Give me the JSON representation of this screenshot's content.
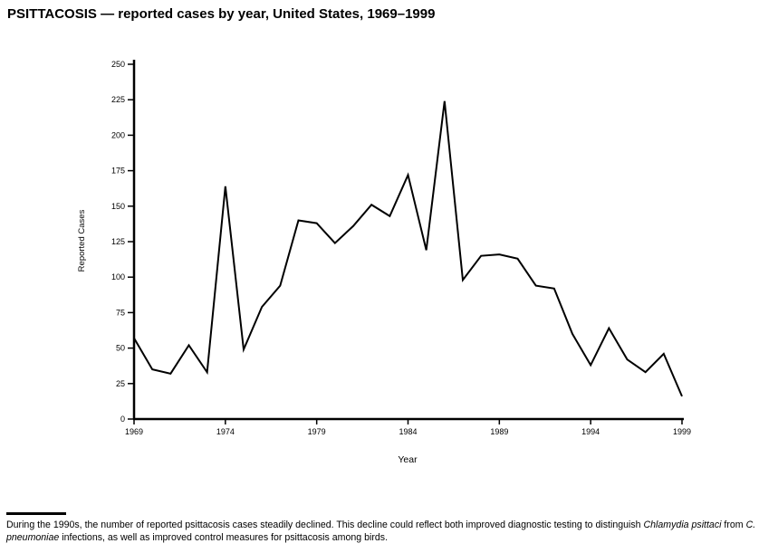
{
  "title": "PSITTACOSIS — reported cases by year, United States, 1969–1999",
  "chart_data": {
    "type": "line",
    "title": "PSITTACOSIS — reported cases by year, United States, 1969–1999",
    "xlabel": "Year",
    "ylabel": "Reported Cases",
    "ylim": [
      0,
      250
    ],
    "y_ticks": [
      0,
      25,
      50,
      75,
      100,
      125,
      150,
      175,
      200,
      225,
      250
    ],
    "x_ticks": [
      1969,
      1974,
      1979,
      1984,
      1989,
      1994,
      1999
    ],
    "x": [
      1969,
      1970,
      1971,
      1972,
      1973,
      1974,
      1975,
      1976,
      1977,
      1978,
      1979,
      1980,
      1981,
      1982,
      1983,
      1984,
      1985,
      1986,
      1987,
      1988,
      1989,
      1990,
      1991,
      1992,
      1993,
      1994,
      1995,
      1996,
      1997,
      1998,
      1999
    ],
    "values": [
      57,
      35,
      32,
      52,
      33,
      164,
      49,
      79,
      94,
      140,
      138,
      124,
      136,
      151,
      143,
      172,
      119,
      224,
      98,
      115,
      116,
      113,
      94,
      92,
      60,
      38,
      64,
      42,
      33,
      46,
      16
    ],
    "line_color": "#000000",
    "grid": false,
    "legend": false
  },
  "footer": {
    "seg1": "During the 1990s, the number of reported psittacosis cases steadily declined. This decline could reflect both improved diagnostic testing to distinguish ",
    "italic1": "Chlamydia psittaci",
    "seg2": " from ",
    "italic2": "C. pneumoniae",
    "seg3": " infections, as well as improved control measures for psittacosis among birds."
  }
}
